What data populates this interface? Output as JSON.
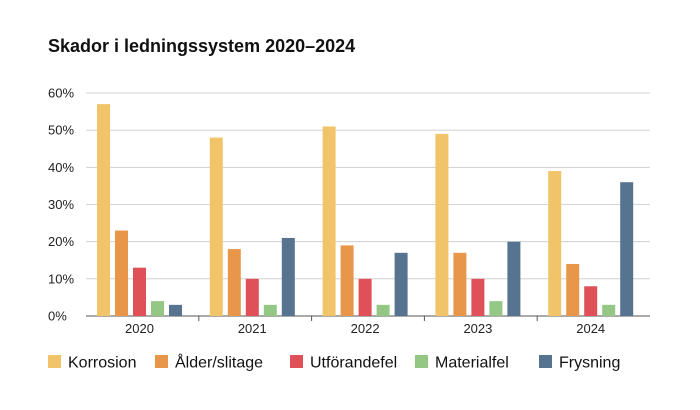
{
  "chart_data": {
    "type": "bar",
    "title": "Skador i ledningssystem 2020–2024",
    "xlabel": "",
    "ylabel": "",
    "categories": [
      "2020",
      "2021",
      "2022",
      "2023",
      "2024"
    ],
    "ylim": [
      0,
      60
    ],
    "yticks": [
      0,
      10,
      20,
      30,
      40,
      50,
      60
    ],
    "ytick_labels": [
      "0%",
      "10%",
      "20%",
      "30%",
      "40%",
      "50%",
      "60%"
    ],
    "grid": true,
    "legend_position": "bottom",
    "series": [
      {
        "name": "Korrosion",
        "color": "#F2C46A",
        "values": [
          57,
          48,
          51,
          49,
          39
        ]
      },
      {
        "name": "Ålder/slitage",
        "color": "#E8974A",
        "values": [
          23,
          18,
          19,
          17,
          14
        ]
      },
      {
        "name": "Utförandefel",
        "color": "#E05058",
        "values": [
          13,
          10,
          10,
          10,
          8
        ]
      },
      {
        "name": "Materialfel",
        "color": "#94C784",
        "values": [
          4,
          3,
          3,
          4,
          3
        ]
      },
      {
        "name": "Frysning",
        "color": "#56738F",
        "values": [
          3,
          21,
          17,
          20,
          36
        ]
      }
    ]
  }
}
